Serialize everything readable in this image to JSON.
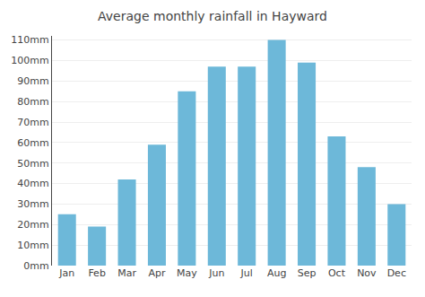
{
  "chart_data": {
    "type": "bar",
    "title": "Average monthly rainfall in Hayward",
    "categories": [
      "Jan",
      "Feb",
      "Mar",
      "Apr",
      "May",
      "Jun",
      "Jul",
      "Aug",
      "Sep",
      "Oct",
      "Nov",
      "Dec"
    ],
    "values": [
      25,
      19,
      42,
      59,
      85,
      97,
      97,
      110,
      99,
      63,
      48,
      30
    ],
    "color": "#6db8d9",
    "ylim": [
      0,
      112
    ],
    "yticks": [
      {
        "value": 0,
        "label": "0mm"
      },
      {
        "value": 10,
        "label": "10mm"
      },
      {
        "value": 20,
        "label": "20mm"
      },
      {
        "value": 30,
        "label": "30mm"
      },
      {
        "value": 40,
        "label": "40mm"
      },
      {
        "value": 50,
        "label": "50mm"
      },
      {
        "value": 60,
        "label": "60mm"
      },
      {
        "value": 70,
        "label": "70mm"
      },
      {
        "value": 80,
        "label": "80mm"
      },
      {
        "value": 90,
        "label": "90mm"
      },
      {
        "value": 100,
        "label": "100mm"
      },
      {
        "value": 110,
        "label": "110mm"
      }
    ],
    "grid": true
  }
}
